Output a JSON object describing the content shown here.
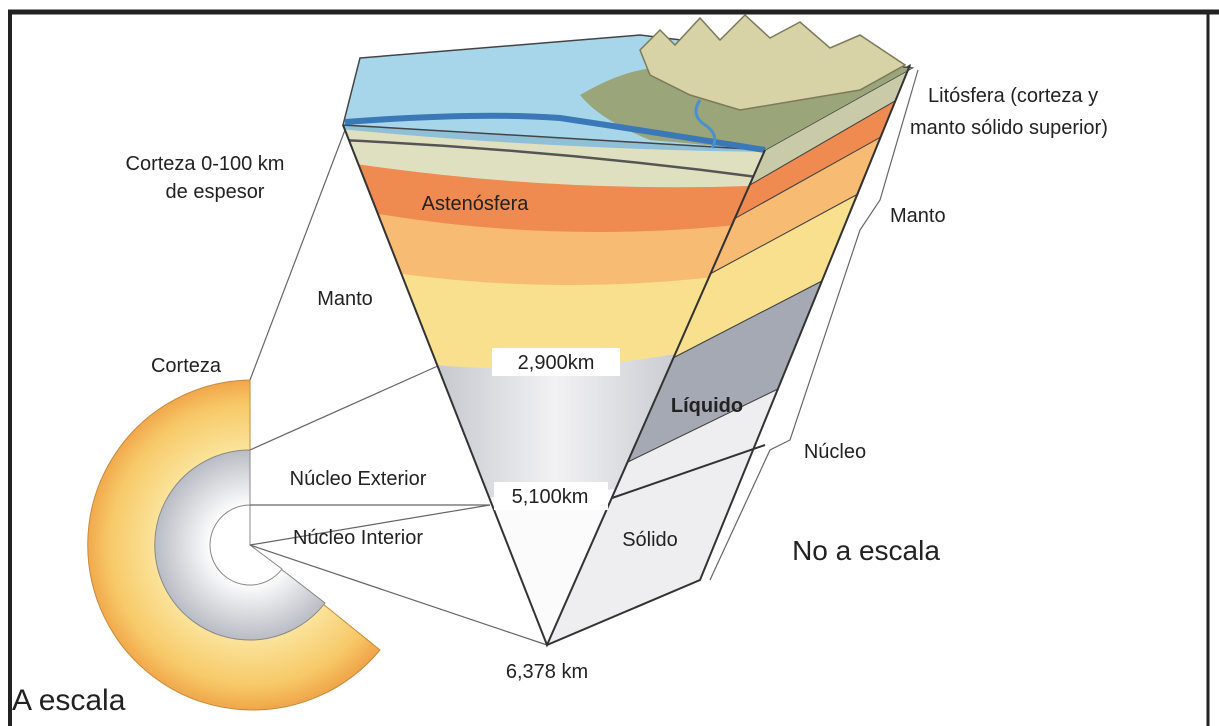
{
  "labels": {
    "crust_thickness": [
      "Corteza 0-100 km",
      "de espesor"
    ],
    "asthenosphere": "Astenósfera",
    "lithosphere": [
      "Litósfera (corteza y",
      "manto sólido superior)"
    ],
    "mantle_right": "Manto",
    "mantle_left": "Manto",
    "crust": "Corteza",
    "depth_mantle": "2,900km",
    "liquid": "Líquido",
    "core": "Núcleo",
    "outer_core": "Núcleo Exterior",
    "depth_outer_core": "5,100km",
    "inner_core": "Núcleo Interior",
    "solid": "Sólido",
    "not_to_scale": "No a escala",
    "depth_center": "6,378 km",
    "to_scale": "A escala"
  }
}
